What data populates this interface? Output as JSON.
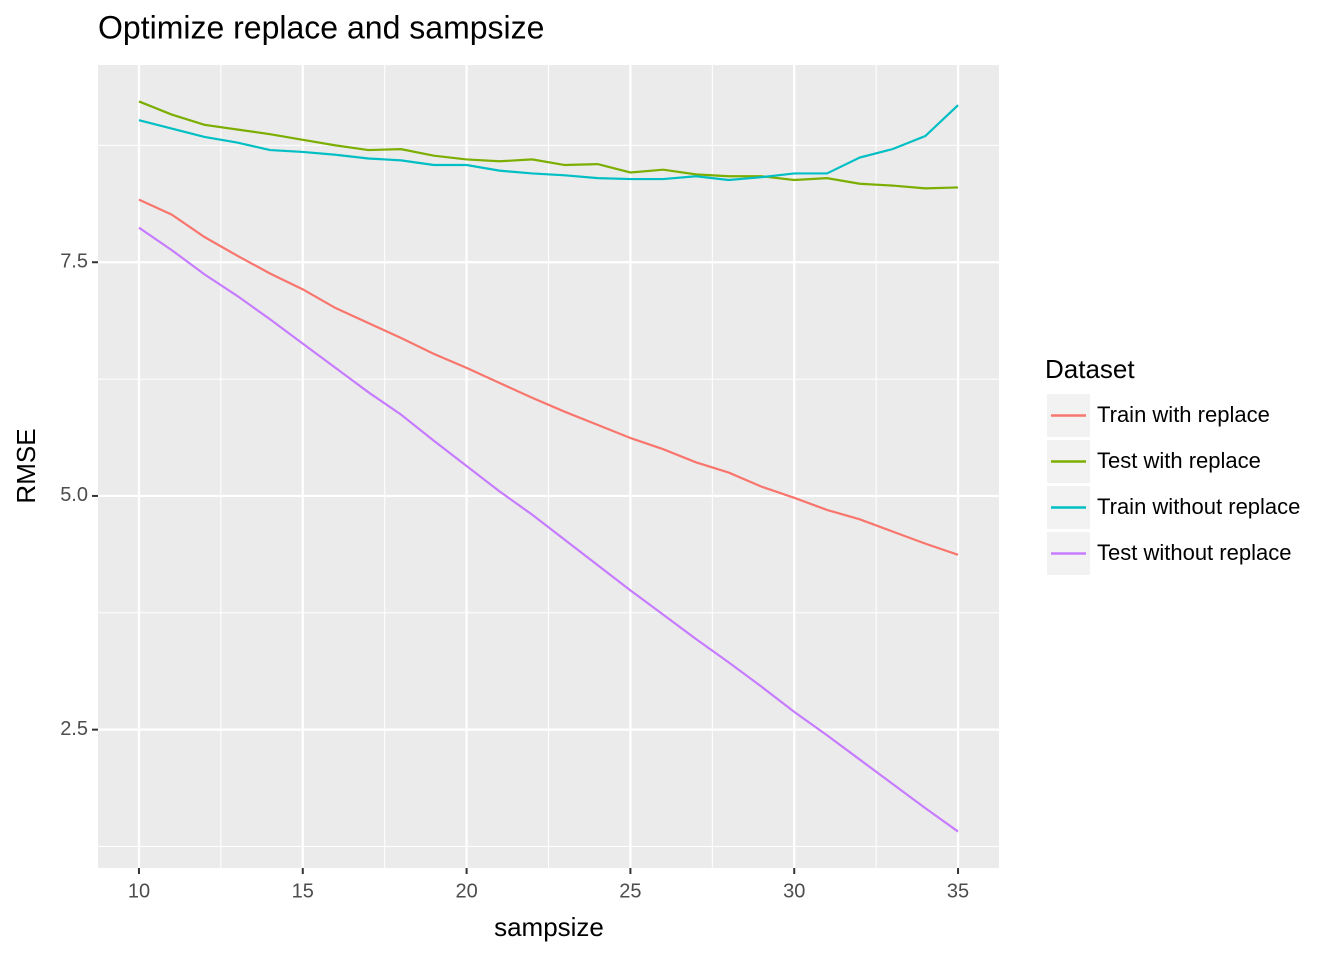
{
  "chart_data": {
    "type": "line",
    "title": "Optimize replace and sampsize",
    "x_label": "sampsize",
    "y_label": "RMSE",
    "legend_title": "Dataset",
    "legend_position": "right",
    "grid": true,
    "x": [
      10,
      11,
      12,
      13,
      14,
      15,
      16,
      17,
      18,
      19,
      20,
      21,
      22,
      23,
      24,
      25,
      26,
      27,
      28,
      29,
      30,
      31,
      32,
      33,
      34,
      35
    ],
    "xlim": [
      8.75,
      36.25
    ],
    "xticks": [
      10,
      15,
      20,
      25,
      30,
      35
    ],
    "ylim": [
      1.02,
      9.61
    ],
    "yticks": [
      {
        "value": 2.5,
        "label": "2.5"
      },
      {
        "value": 5,
        "label": "5.0"
      },
      {
        "value": 7.5,
        "label": "7.5"
      }
    ],
    "series": [
      {
        "name": "Train with replace",
        "color": "#F8766D",
        "values": [
          8.17,
          8.01,
          7.77,
          7.57,
          7.38,
          7.21,
          7.01,
          6.85,
          6.69,
          6.52,
          6.37,
          6.21,
          6.05,
          5.9,
          5.76,
          5.62,
          5.5,
          5.36,
          5.25,
          5.1,
          4.98,
          4.85,
          4.75,
          4.62,
          4.49,
          4.37
        ]
      },
      {
        "name": "Test with replace",
        "color": "#7CAE00",
        "values": [
          9.22,
          9.08,
          8.97,
          8.92,
          8.87,
          8.81,
          8.75,
          8.7,
          8.71,
          8.64,
          8.6,
          8.58,
          8.6,
          8.54,
          8.55,
          8.46,
          8.49,
          8.44,
          8.42,
          8.42,
          8.38,
          8.4,
          8.34,
          8.32,
          8.29,
          8.3
        ]
      },
      {
        "name": "Train without replace",
        "color": "#00BFC4",
        "values": [
          9.02,
          8.93,
          8.84,
          8.78,
          8.7,
          8.68,
          8.65,
          8.61,
          8.59,
          8.54,
          8.54,
          8.48,
          8.45,
          8.43,
          8.4,
          8.39,
          8.39,
          8.42,
          8.38,
          8.41,
          8.45,
          8.45,
          8.62,
          8.71,
          8.85,
          9.18
        ]
      },
      {
        "name": "Test without replace",
        "color": "#C77CFF",
        "values": [
          7.87,
          7.63,
          7.37,
          7.14,
          6.89,
          6.63,
          6.37,
          6.11,
          5.87,
          5.59,
          5.32,
          5.05,
          4.8,
          4.53,
          4.26,
          3.99,
          3.73,
          3.47,
          3.22,
          2.96,
          2.69,
          2.44,
          2.18,
          1.92,
          1.66,
          1.41
        ]
      }
    ]
  }
}
